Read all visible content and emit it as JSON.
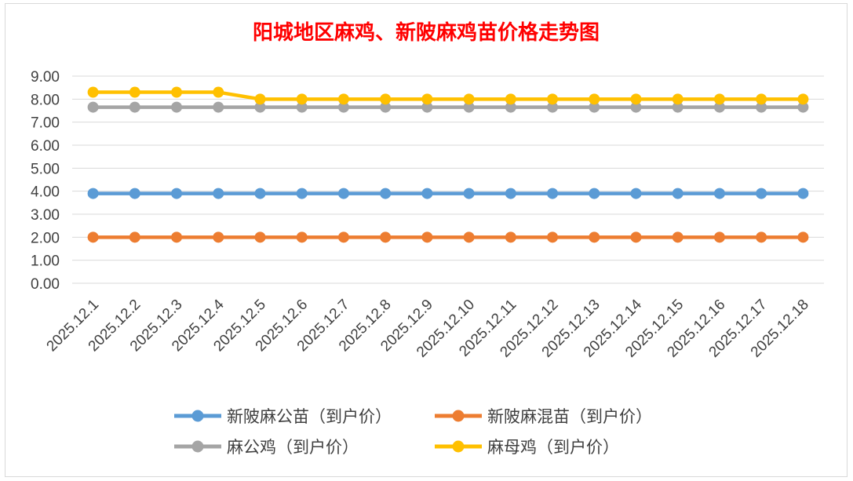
{
  "chart_data": {
    "type": "line",
    "title": "阳城地区麻鸡、新陂麻鸡苗价格走势图",
    "categories": [
      "2025.12.1",
      "2025.12.2",
      "2025.12.3",
      "2025.12.4",
      "2025.12.5",
      "2025.12.6",
      "2025.12.7",
      "2025.12.8",
      "2025.12.9",
      "2025.12.10",
      "2025.12.11",
      "2025.12.12",
      "2025.12.13",
      "2025.12.14",
      "2025.12.15",
      "2025.12.16",
      "2025.12.17",
      "2025.12.18"
    ],
    "y_ticks": [
      "0.00",
      "1.00",
      "2.00",
      "3.00",
      "4.00",
      "5.00",
      "6.00",
      "7.00",
      "8.00",
      "9.00"
    ],
    "ylim": [
      0,
      9
    ],
    "grid": true,
    "legend_position": "bottom",
    "series": [
      {
        "name": "新陂麻公苗（到户价）",
        "color": "#5b9bd5",
        "values": [
          3.9,
          3.9,
          3.9,
          3.9,
          3.9,
          3.9,
          3.9,
          3.9,
          3.9,
          3.9,
          3.9,
          3.9,
          3.9,
          3.9,
          3.9,
          3.9,
          3.9,
          3.9
        ]
      },
      {
        "name": "新陂麻混苗（到户价）",
        "color": "#ed7d31",
        "values": [
          2.0,
          2.0,
          2.0,
          2.0,
          2.0,
          2.0,
          2.0,
          2.0,
          2.0,
          2.0,
          2.0,
          2.0,
          2.0,
          2.0,
          2.0,
          2.0,
          2.0,
          2.0
        ]
      },
      {
        "name": "麻公鸡（到户价）",
        "color": "#a5a5a5",
        "values": [
          7.65,
          7.65,
          7.65,
          7.65,
          7.65,
          7.65,
          7.65,
          7.65,
          7.65,
          7.65,
          7.65,
          7.65,
          7.65,
          7.65,
          7.65,
          7.65,
          7.65,
          7.65
        ]
      },
      {
        "name": "麻母鸡（到户价）",
        "color": "#ffc000",
        "values": [
          8.3,
          8.3,
          8.3,
          8.3,
          8.0,
          8.0,
          8.0,
          8.0,
          8.0,
          8.0,
          8.0,
          8.0,
          8.0,
          8.0,
          8.0,
          8.0,
          8.0,
          8.0
        ]
      }
    ]
  }
}
